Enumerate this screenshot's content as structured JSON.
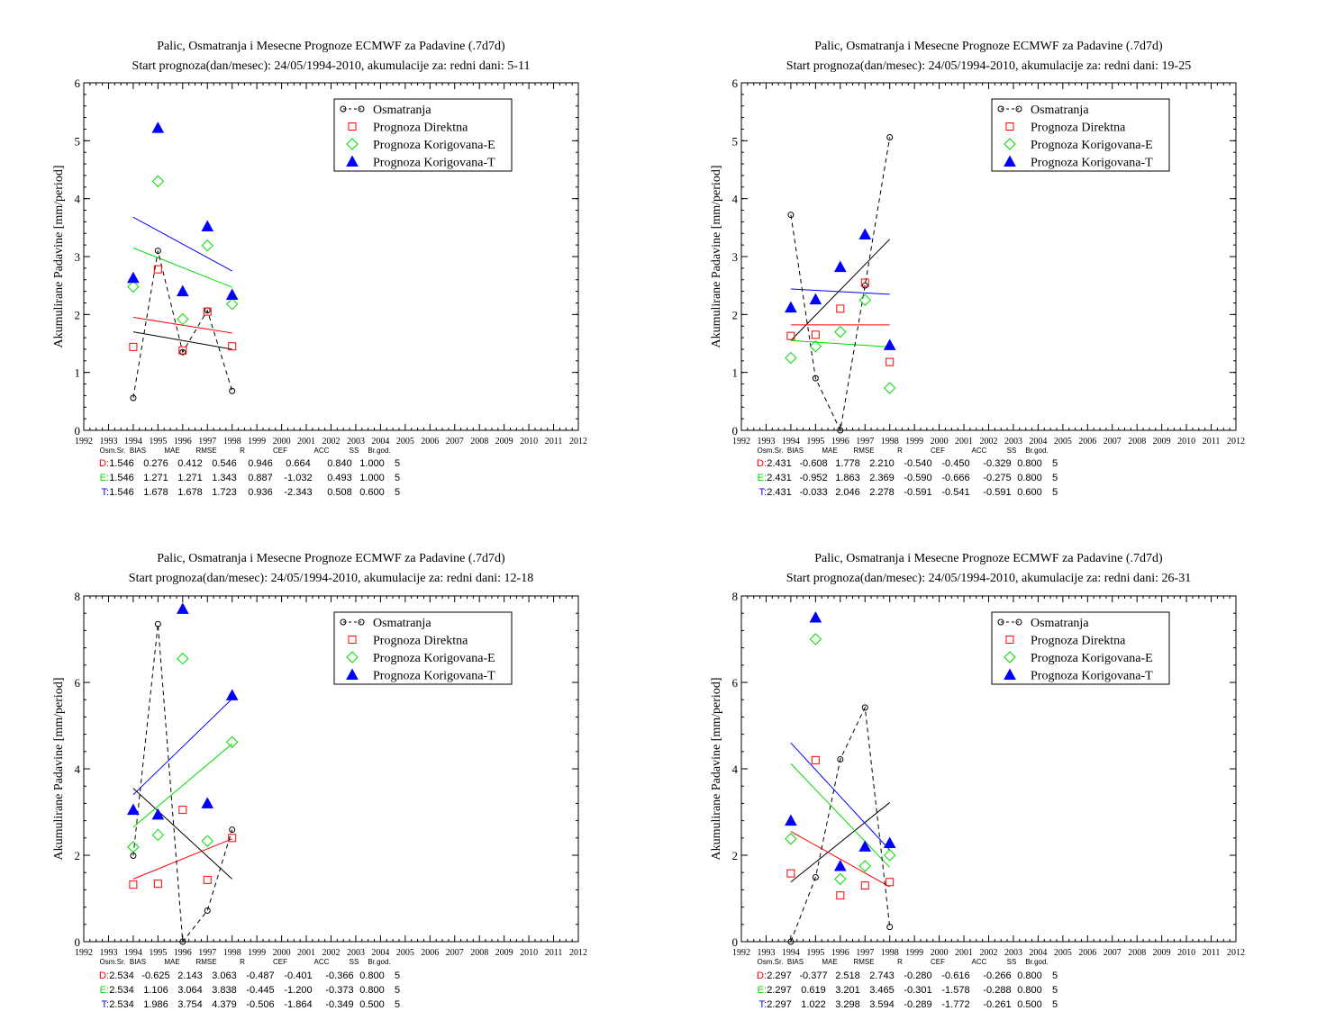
{
  "stats_header": [
    "Osm.Sr.",
    "BIAS",
    "MAE",
    "RMSE",
    "R",
    "CEF",
    "ACC",
    "SS",
    "Br.god."
  ],
  "legend": [
    "Osmatranja",
    "Prognoza Direktna",
    "Prognoza Korigovana-E",
    "Prognoza Korigovana-T"
  ],
  "colors": {
    "obs": "#000000",
    "direct": "#ff0000",
    "corrE": "#00dd00",
    "corrT": "#0000ff"
  },
  "chart_data": [
    {
      "type": "scatter",
      "title": "Palic, Osmatranja i Mesecne Prognoze ECMWF za Padavine (.7d7d)",
      "subtitle": "Start prognoza(dan/mesec): 24/05/1994-2010, akumulacije za: redni dani: 5-11",
      "xlabel": "",
      "ylabel": "Akumulirane Padavine [mm/period]",
      "xlim": [
        1992,
        2012
      ],
      "ylim": [
        0,
        6
      ],
      "yticks": [
        0,
        1,
        2,
        3,
        4,
        5,
        6
      ],
      "xticks": [
        1992,
        1993,
        1994,
        1995,
        1996,
        1997,
        1998,
        1999,
        2000,
        2001,
        2002,
        2003,
        2004,
        2005,
        2006,
        2007,
        2008,
        2009,
        2010,
        2011,
        2012
      ],
      "x": [
        1994,
        1995,
        1996,
        1997,
        1998
      ],
      "legend_position": "top-right",
      "series": [
        {
          "name": "Osmatranja",
          "key": "obs",
          "values": [
            0.56,
            3.1,
            1.35,
            2.07,
            0.68
          ],
          "trend": [
            1.7,
            1.4
          ]
        },
        {
          "name": "Prognoza Direktna",
          "key": "direct",
          "values": [
            1.44,
            2.78,
            1.38,
            2.05,
            1.45
          ],
          "trend": [
            1.95,
            1.68
          ]
        },
        {
          "name": "Prognoza Korigovana-E",
          "key": "corrE",
          "values": [
            2.48,
            4.3,
            1.92,
            3.19,
            2.18
          ],
          "trend": [
            3.15,
            2.47
          ]
        },
        {
          "name": "Prognoza Korigovana-T",
          "key": "corrT",
          "values": [
            2.63,
            5.22,
            2.4,
            3.52,
            2.34
          ],
          "trend": [
            3.68,
            2.75
          ]
        }
      ],
      "stats": [
        {
          "label": "D:",
          "key": "direct",
          "values": [
            "1.546",
            "0.276",
            "0.412",
            "0.546",
            "0.946",
            "0.664",
            "0.840",
            "1.000",
            "5"
          ]
        },
        {
          "label": "E:",
          "key": "corrE",
          "values": [
            "1.546",
            "1.271",
            "1.271",
            "1.343",
            "0.887",
            "-1.032",
            "0.493",
            "1.000",
            "5"
          ]
        },
        {
          "label": "T:",
          "key": "corrT",
          "values": [
            "1.546",
            "1.678",
            "1.678",
            "1.723",
            "0.936",
            "-2.343",
            "0.508",
            "0.600",
            "5"
          ]
        }
      ]
    },
    {
      "type": "scatter",
      "title": "Palic, Osmatranja i Mesecne Prognoze ECMWF za Padavine (.7d7d)",
      "subtitle": "Start prognoza(dan/mesec): 24/05/1994-2010, akumulacije za: redni dani: 19-25",
      "xlabel": "",
      "ylabel": "Akumulirane Padavine [mm/period]",
      "xlim": [
        1992,
        2012
      ],
      "ylim": [
        0,
        6
      ],
      "yticks": [
        0,
        1,
        2,
        3,
        4,
        5,
        6
      ],
      "xticks": [
        1992,
        1993,
        1994,
        1995,
        1996,
        1997,
        1998,
        1999,
        2000,
        2001,
        2002,
        2003,
        2004,
        2005,
        2006,
        2007,
        2008,
        2009,
        2010,
        2011,
        2012
      ],
      "x": [
        1994,
        1995,
        1996,
        1997,
        1998
      ],
      "legend_position": "top-right",
      "series": [
        {
          "name": "Osmatranja",
          "key": "obs",
          "values": [
            3.72,
            0.9,
            0.0,
            2.5,
            5.06
          ],
          "trend": [
            1.55,
            3.3
          ]
        },
        {
          "name": "Prognoza Direktna",
          "key": "direct",
          "values": [
            1.63,
            1.65,
            2.1,
            2.55,
            1.18
          ],
          "trend": [
            1.82,
            1.82
          ]
        },
        {
          "name": "Prognoza Korigovana-E",
          "key": "corrE",
          "values": [
            1.25,
            1.45,
            1.7,
            2.25,
            0.73
          ],
          "trend": [
            1.55,
            1.44
          ]
        },
        {
          "name": "Prognoza Korigovana-T",
          "key": "corrT",
          "values": [
            2.12,
            2.26,
            2.82,
            3.38,
            1.47
          ],
          "trend": [
            2.44,
            2.35
          ]
        }
      ],
      "stats": [
        {
          "label": "D:",
          "key": "direct",
          "values": [
            "2.431",
            "-0.608",
            "1.778",
            "2.210",
            "-0.540",
            "-0.450",
            "-0.329",
            "0.800",
            "5"
          ]
        },
        {
          "label": "E:",
          "key": "corrE",
          "values": [
            "2.431",
            "-0.952",
            "1.863",
            "2.369",
            "-0.590",
            "-0.666",
            "-0.275",
            "0.800",
            "5"
          ]
        },
        {
          "label": "T:",
          "key": "corrT",
          "values": [
            "2.431",
            "-0.033",
            "2.046",
            "2.278",
            "-0.591",
            "-0.541",
            "-0.591",
            "0.600",
            "5"
          ]
        }
      ]
    },
    {
      "type": "scatter",
      "title": "Palic, Osmatranja i Mesecne Prognoze ECMWF za Padavine (.7d7d)",
      "subtitle": "Start prognoza(dan/mesec): 24/05/1994-2010, akumulacije za: redni dani: 12-18",
      "xlabel": "",
      "ylabel": "Akumulirane Padavine [mm/period]",
      "xlim": [
        1992,
        2012
      ],
      "ylim": [
        0,
        8
      ],
      "yticks": [
        0,
        2,
        4,
        6,
        8
      ],
      "xticks": [
        1992,
        1993,
        1994,
        1995,
        1996,
        1997,
        1998,
        1999,
        2000,
        2001,
        2002,
        2003,
        2004,
        2005,
        2006,
        2007,
        2008,
        2009,
        2010,
        2011,
        2012
      ],
      "x": [
        1994,
        1995,
        1996,
        1997,
        1998
      ],
      "legend_position": "top-right",
      "series": [
        {
          "name": "Osmatranja",
          "key": "obs",
          "values": [
            1.99,
            7.35,
            0.0,
            0.72,
            2.59
          ],
          "trend": [
            3.55,
            1.45
          ]
        },
        {
          "name": "Prognoza Direktna",
          "key": "direct",
          "values": [
            1.32,
            1.34,
            3.05,
            1.43,
            2.4
          ],
          "trend": [
            1.45,
            2.38
          ]
        },
        {
          "name": "Prognoza Korigovana-E",
          "key": "corrE",
          "values": [
            2.19,
            2.47,
            6.55,
            2.33,
            4.62
          ],
          "trend": [
            2.65,
            4.58
          ]
        },
        {
          "name": "Prognoza Korigovana-T",
          "key": "corrT",
          "values": [
            3.05,
            2.94,
            7.7,
            3.2,
            5.7
          ],
          "trend": [
            3.4,
            5.62
          ]
        }
      ],
      "stats": [
        {
          "label": "D:",
          "key": "direct",
          "values": [
            "2.534",
            "-0.625",
            "2.143",
            "3.063",
            "-0.487",
            "-0.401",
            "-0.366",
            "0.800",
            "5"
          ]
        },
        {
          "label": "E:",
          "key": "corrE",
          "values": [
            "2.534",
            "1.106",
            "3.064",
            "3.838",
            "-0.445",
            "-1.200",
            "-0.373",
            "0.800",
            "5"
          ]
        },
        {
          "label": "T:",
          "key": "corrT",
          "values": [
            "2.534",
            "1.986",
            "3.754",
            "4.379",
            "-0.506",
            "-1.864",
            "-0.349",
            "0.500",
            "5"
          ]
        }
      ]
    },
    {
      "type": "scatter",
      "title": "Palic, Osmatranja i Mesecne Prognoze ECMWF za Padavine (.7d7d)",
      "subtitle": "Start prognoza(dan/mesec): 24/05/1994-2010, akumulacije za: redni dani: 26-31",
      "xlabel": "",
      "ylabel": "Akumulirane Padavine [mm/period]",
      "xlim": [
        1992,
        2012
      ],
      "ylim": [
        0,
        8
      ],
      "yticks": [
        0,
        2,
        4,
        6,
        8
      ],
      "xticks": [
        1992,
        1993,
        1994,
        1995,
        1996,
        1997,
        1998,
        1999,
        2000,
        2001,
        2002,
        2003,
        2004,
        2005,
        2006,
        2007,
        2008,
        2009,
        2010,
        2011,
        2012
      ],
      "x": [
        1994,
        1995,
        1996,
        1997,
        1998
      ],
      "legend_position": "top-right",
      "series": [
        {
          "name": "Osmatranja",
          "key": "obs",
          "values": [
            0.0,
            1.49,
            4.22,
            5.42,
            0.34
          ],
          "trend": [
            1.38,
            3.22
          ]
        },
        {
          "name": "Prognoza Direktna",
          "key": "direct",
          "values": [
            1.58,
            4.2,
            1.07,
            1.3,
            1.38
          ],
          "trend": [
            2.55,
            1.27
          ]
        },
        {
          "name": "Prognoza Korigovana-E",
          "key": "corrE",
          "values": [
            2.38,
            7.0,
            1.45,
            1.75,
            2.0
          ],
          "trend": [
            4.12,
            1.72
          ]
        },
        {
          "name": "Prognoza Korigovana-T",
          "key": "corrT",
          "values": [
            2.8,
            7.5,
            1.75,
            2.2,
            2.28
          ],
          "trend": [
            4.6,
            2.12
          ]
        }
      ],
      "stats": [
        {
          "label": "D:",
          "key": "direct",
          "values": [
            "2.297",
            "-0.377",
            "2.518",
            "2.743",
            "-0.280",
            "-0.616",
            "-0.266",
            "0.800",
            "5"
          ]
        },
        {
          "label": "E:",
          "key": "corrE",
          "values": [
            "2.297",
            "0.619",
            "3.201",
            "3.465",
            "-0.301",
            "-1.578",
            "-0.288",
            "0.800",
            "5"
          ]
        },
        {
          "label": "T:",
          "key": "corrT",
          "values": [
            "2.297",
            "1.022",
            "3.298",
            "3.594",
            "-0.289",
            "-1.772",
            "-0.261",
            "0.500",
            "5"
          ]
        }
      ]
    }
  ]
}
